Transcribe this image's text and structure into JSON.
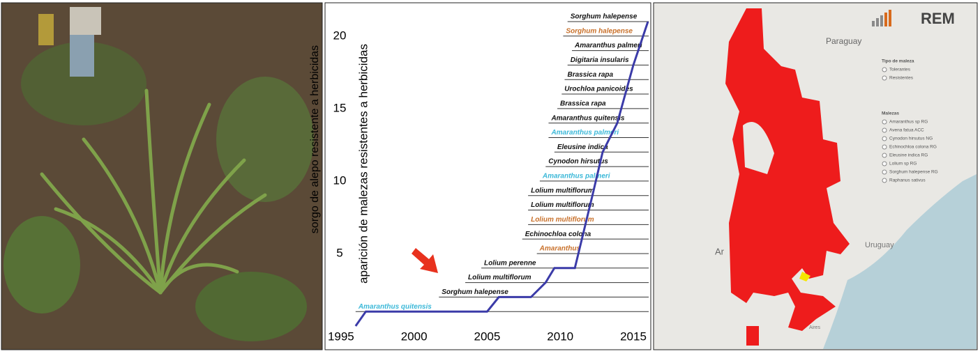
{
  "photo": {
    "caption": "sorgo de alepo resistente a herbicidas"
  },
  "chart_data": {
    "type": "line",
    "ylabel": "aparición de malezas resistentes a herbicidas",
    "x": [
      1996,
      1996.7,
      2005,
      2005.8,
      2008,
      2009,
      2009.6,
      2011,
      2012.2,
      2012.9,
      2013.9,
      2015,
      2016
    ],
    "values": [
      0,
      1,
      1,
      2,
      2,
      3,
      4,
      4,
      9,
      12,
      14,
      18,
      21
    ],
    "color": "#3b3ba8",
    "xlim": [
      1994.1,
      2016.05
    ],
    "ylim": [
      0,
      22.2
    ],
    "xticks": [
      1995,
      2000,
      2005,
      2010,
      2015
    ],
    "yticks": [
      5,
      10,
      15,
      20
    ],
    "annotations": [
      {
        "text": "Amaranthus quitensis",
        "year": 1996,
        "level": 1,
        "color": "#3bb8d8"
      },
      {
        "text": "Sorghum halepense",
        "year": 2001.7,
        "level": 2,
        "color": "#111111"
      },
      {
        "text": "Lolium multiflorum",
        "year": 2003.5,
        "level": 3,
        "color": "#111111"
      },
      {
        "text": "Lolium perenne",
        "year": 2004.6,
        "level": 4,
        "color": "#111111"
      },
      {
        "text": "Amaranthus",
        "year": 2008.4,
        "level": 5,
        "color": "#c8702a"
      },
      {
        "text": "Echinochloa colona",
        "year": 2007.4,
        "level": 6,
        "color": "#111111"
      },
      {
        "text": "Lolium multiflorum",
        "year": 2007.8,
        "level": 7,
        "color": "#c8702a"
      },
      {
        "text": "Lolium multiflorum",
        "year": 2007.8,
        "level": 8,
        "color": "#111111"
      },
      {
        "text": "Lolium multiflorum",
        "year": 2007.8,
        "level": 9,
        "color": "#111111"
      },
      {
        "text": "Amaranthus palmeri",
        "year": 2008.6,
        "level": 10,
        "color": "#3bb8d8"
      },
      {
        "text": "Cynodon hirsutus",
        "year": 2009,
        "level": 11,
        "color": "#111111"
      },
      {
        "text": "Eleusine indica",
        "year": 2009.6,
        "level": 12,
        "color": "#111111"
      },
      {
        "text": "Amaranthus palmeri",
        "year": 2009.2,
        "level": 13,
        "color": "#3bb8d8"
      },
      {
        "text": "Amaranthus quitensis",
        "year": 2009.2,
        "level": 14,
        "color": "#111111"
      },
      {
        "text": "Brassica rapa",
        "year": 2009.8,
        "level": 15,
        "color": "#111111"
      },
      {
        "text": "Urochloa panicoides",
        "year": 2010.1,
        "level": 16,
        "color": "#111111"
      },
      {
        "text": "Brassica rapa",
        "year": 2010.3,
        "level": 17,
        "color": "#111111"
      },
      {
        "text": "Digitaria insularis",
        "year": 2010.5,
        "level": 18,
        "color": "#111111"
      },
      {
        "text": "Amaranthus palmeri",
        "year": 2010.8,
        "level": 19,
        "color": "#111111"
      },
      {
        "text": "Sorghum halepense",
        "year": 2010.2,
        "level": 20,
        "color": "#c8702a"
      },
      {
        "text": "Sorghum halepense",
        "year": 2010.5,
        "level": 21,
        "color": "#111111"
      }
    ]
  },
  "map": {
    "logo": "REM",
    "country_1": "Paraguay",
    "country_2": "Uruguay",
    "country_3": "Ar",
    "city": "Aires",
    "legend_title_1": "Tipo de maleza",
    "types": [
      "Tolerantes",
      "Resistentes"
    ],
    "legend_title_2": "Malezas",
    "weeds": [
      "Amaranthus sp RG",
      "Avena fatua ACC",
      "Cynodon hirsutus NG",
      "Echinochloa colona RG",
      "Eleusine indica RG",
      "Lolium sp RG",
      "Sorghum halepense RG",
      "Raphanus sativus"
    ]
  }
}
